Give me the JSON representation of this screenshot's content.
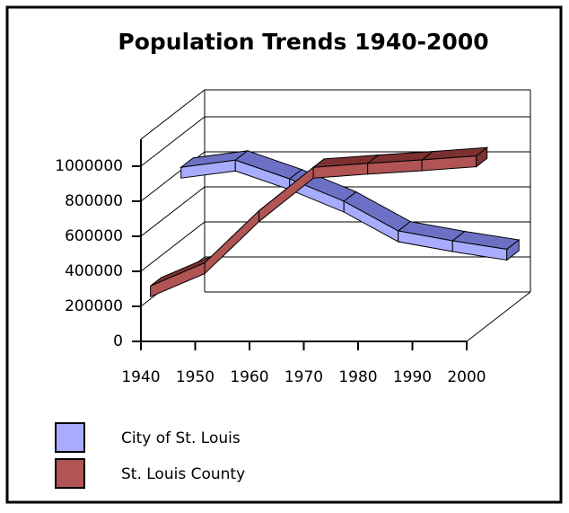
{
  "chart_data": {
    "type": "line3d",
    "title": "Population Trends 1940-2000",
    "categories": [
      "1940",
      "1950",
      "1960",
      "1970",
      "1980",
      "1990",
      "2000"
    ],
    "series": [
      {
        "name": "City of St. Louis",
        "color": "#a8acff",
        "top_color": "#6c70c4",
        "values": [
          816048,
          856796,
          750026,
          622236,
          452801,
          396685,
          348189
        ]
      },
      {
        "name": "St. Louis County",
        "color": "#b05454",
        "top_color": "#7c3030",
        "values": [
          274230,
          406349,
          703532,
          951353,
          973896,
          993529,
          1016315
        ]
      }
    ],
    "ylim": [
      0,
      1000000
    ],
    "yticks": [
      0,
      200000,
      400000,
      600000,
      800000,
      1000000
    ],
    "grid": true,
    "legend": "bottom"
  }
}
